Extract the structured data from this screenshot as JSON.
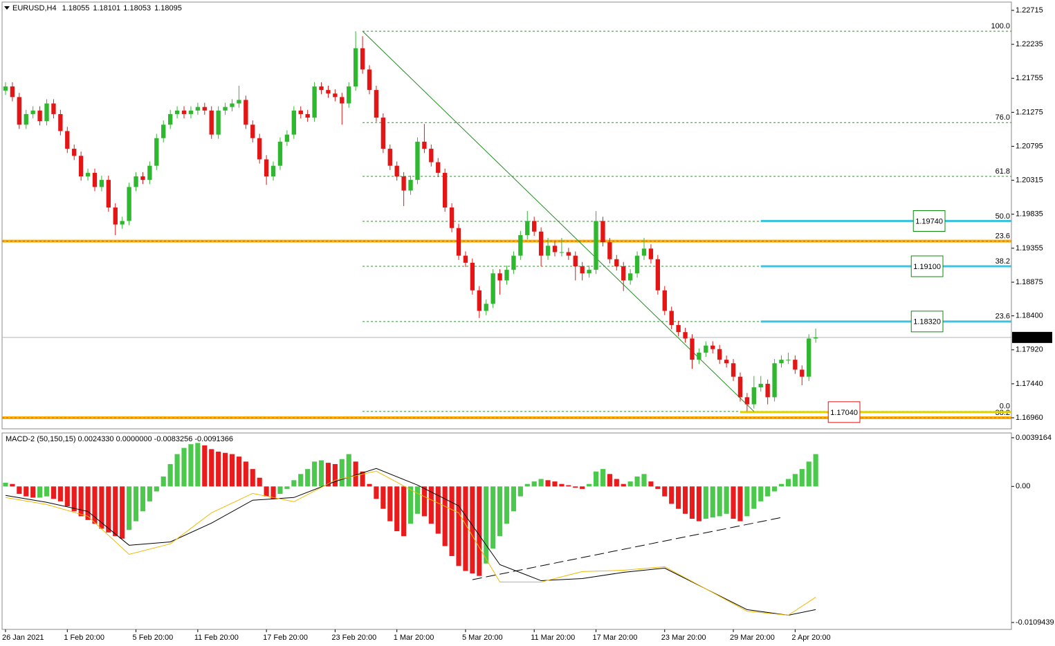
{
  "header": {
    "symbol": "EURUSD,H4",
    "ohlc": [
      1.18055,
      1.18101,
      1.18053,
      1.18095
    ]
  },
  "chart_data": [
    {
      "type": "candlestick",
      "up_color": "#2fb82f",
      "down_color": "#e31515",
      "xlim": [
        -0.5,
        146.5
      ],
      "xticks": [
        {
          "value": 0,
          "label": "26 Jan 2021"
        },
        {
          "value": 9,
          "label": "1 Feb 20:00"
        },
        {
          "value": 19,
          "label": "5 Feb 20:00"
        },
        {
          "value": 28,
          "label": "11 Feb 20:00"
        },
        {
          "value": 38,
          "label": "17 Feb 20:00"
        },
        {
          "value": 48,
          "label": "23 Feb 20:00"
        },
        {
          "value": 57,
          "label": "1 Mar 20:00"
        },
        {
          "value": 67,
          "label": "5 Mar 20:00"
        },
        {
          "value": 77,
          "label": "11 Mar 20:00"
        },
        {
          "value": 86,
          "label": "17 Mar 20:00"
        },
        {
          "value": 96,
          "label": "23 Mar 20:00"
        },
        {
          "value": 106,
          "label": "29 Mar 20:00"
        },
        {
          "value": 115,
          "label": "2 Apr 20:00"
        }
      ],
      "ylim": [
        1.16804,
        1.22832
      ],
      "yticks": [
        1.22715,
        1.22235,
        1.21755,
        1.21275,
        1.20795,
        1.20315,
        1.19835,
        1.19355,
        1.18875,
        {
          "value": 1.184,
          "label": "1.18400"
        },
        {
          "value": 1.1792,
          "label": "1.17920"
        },
        {
          "value": 1.1744,
          "label": "1.17440"
        },
        {
          "value": 1.1696,
          "label": "1.16960"
        }
      ],
      "current_price": 1.18095,
      "candles": [
        [
          1.2158,
          1.217,
          1.2152,
          1.2164
        ],
        [
          1.2164,
          1.217,
          1.2143,
          1.2149
        ],
        [
          1.2149,
          1.2155,
          1.2104,
          1.211
        ],
        [
          1.211,
          1.2131,
          1.2104,
          1.2125
        ],
        [
          1.2125,
          1.2136,
          1.2119,
          1.213
        ],
        [
          1.213,
          1.2136,
          1.2109,
          1.2115
        ],
        [
          1.2115,
          1.2146,
          1.2109,
          1.214
        ],
        [
          1.214,
          1.2146,
          1.2119,
          1.2125
        ],
        [
          1.2125,
          1.2131,
          1.2095,
          1.2101
        ],
        [
          1.2101,
          1.2107,
          1.207,
          1.2076
        ],
        [
          1.2076,
          1.2082,
          1.206,
          1.2066
        ],
        [
          1.2066,
          1.2072,
          1.2031,
          1.2037
        ],
        [
          1.2037,
          1.2048,
          1.2031,
          1.2042
        ],
        [
          1.2042,
          1.2048,
          1.2016,
          1.2022
        ],
        [
          1.2022,
          1.2038,
          1.2016,
          1.2032
        ],
        [
          1.2032,
          1.2038,
          1.1987,
          1.1993
        ],
        [
          1.1993,
          1.1999,
          1.1954,
          1.1969
        ],
        [
          1.1969,
          1.198,
          1.1963,
          1.1974
        ],
        [
          1.1974,
          1.2028,
          1.1968,
          1.2022
        ],
        [
          1.2022,
          1.2043,
          1.2016,
          1.2037
        ],
        [
          1.2037,
          1.2043,
          1.2026,
          1.2032
        ],
        [
          1.2032,
          1.2058,
          1.2026,
          1.2052
        ],
        [
          1.2052,
          1.2097,
          1.2046,
          1.2091
        ],
        [
          1.2091,
          1.2116,
          1.2085,
          1.211
        ],
        [
          1.211,
          1.2131,
          1.2104,
          1.2125
        ],
        [
          1.2125,
          1.2136,
          1.2119,
          1.213
        ],
        [
          1.213,
          1.2136,
          1.2119,
          1.2125
        ],
        [
          1.2125,
          1.2136,
          1.2119,
          1.213
        ],
        [
          1.213,
          1.2141,
          1.2124,
          1.2135
        ],
        [
          1.2135,
          1.2141,
          1.2124,
          1.213
        ],
        [
          1.213,
          1.2136,
          1.209,
          1.2096
        ],
        [
          1.2096,
          1.2136,
          1.209,
          1.213
        ],
        [
          1.213,
          1.2141,
          1.2124,
          1.2135
        ],
        [
          1.2135,
          1.2146,
          1.2129,
          1.214
        ],
        [
          1.214,
          1.2165,
          1.2134,
          1.2145
        ],
        [
          1.2145,
          1.2151,
          1.2104,
          1.211
        ],
        [
          1.211,
          1.2116,
          1.2085,
          1.2091
        ],
        [
          1.2091,
          1.2097,
          1.2055,
          1.2061
        ],
        [
          1.2061,
          1.2067,
          1.2025,
          1.2037
        ],
        [
          1.2037,
          1.2058,
          1.2031,
          1.2052
        ],
        [
          1.2052,
          1.2092,
          1.2046,
          1.2086
        ],
        [
          1.2086,
          1.2102,
          1.208,
          1.2096
        ],
        [
          1.2096,
          1.2136,
          1.209,
          1.213
        ],
        [
          1.213,
          1.2136,
          1.2119,
          1.2125
        ],
        [
          1.2125,
          1.2131,
          1.2114,
          1.212
        ],
        [
          1.212,
          1.217,
          1.2114,
          1.2164
        ],
        [
          1.2164,
          1.217,
          1.2153,
          1.2159
        ],
        [
          1.2159,
          1.2165,
          1.2148,
          1.2154
        ],
        [
          1.2154,
          1.216,
          1.2143,
          1.2149
        ],
        [
          1.2149,
          1.2155,
          1.211,
          1.214
        ],
        [
          1.214,
          1.217,
          1.2134,
          1.2164
        ],
        [
          1.2164,
          1.2242,
          1.2158,
          1.2218
        ],
        [
          1.2218,
          1.2235,
          1.2182,
          1.2188
        ],
        [
          1.2188,
          1.2194,
          1.2153,
          1.2159
        ],
        [
          1.2159,
          1.2165,
          1.2114,
          1.212
        ],
        [
          1.212,
          1.2126,
          1.207,
          1.2076
        ],
        [
          1.2076,
          1.2082,
          1.2046,
          1.2052
        ],
        [
          1.2052,
          1.2058,
          1.2031,
          1.2037
        ],
        [
          1.2037,
          1.2043,
          1.1995,
          1.2017
        ],
        [
          1.2017,
          1.2038,
          1.2011,
          1.2032
        ],
        [
          1.2032,
          1.2092,
          1.2026,
          1.2086
        ],
        [
          1.2086,
          1.2111,
          1.207,
          1.2076
        ],
        [
          1.2076,
          1.2082,
          1.2051,
          1.2057
        ],
        [
          1.2057,
          1.2063,
          1.2036,
          1.2042
        ],
        [
          1.2042,
          1.2048,
          1.1987,
          1.1993
        ],
        [
          1.1993,
          1.1999,
          1.1958,
          1.1964
        ],
        [
          1.1964,
          1.197,
          1.1919,
          1.1925
        ],
        [
          1.1925,
          1.1931,
          1.1909,
          1.1915
        ],
        [
          1.1915,
          1.1921,
          1.187,
          1.1876
        ],
        [
          1.1876,
          1.1882,
          1.1837,
          1.1847
        ],
        [
          1.1847,
          1.1863,
          1.1841,
          1.1857
        ],
        [
          1.1857,
          1.1906,
          1.1851,
          1.19
        ],
        [
          1.19,
          1.1906,
          1.187,
          1.189
        ],
        [
          1.189,
          1.1911,
          1.1884,
          1.1905
        ],
        [
          1.1905,
          1.1931,
          1.1899,
          1.1925
        ],
        [
          1.1925,
          1.196,
          1.1919,
          1.1954
        ],
        [
          1.1954,
          1.1988,
          1.1948,
          1.1974
        ],
        [
          1.1974,
          1.198,
          1.1953,
          1.1959
        ],
        [
          1.1959,
          1.1965,
          1.191,
          1.1925
        ],
        [
          1.1925,
          1.195,
          1.1919,
          1.1939
        ],
        [
          1.1939,
          1.1945,
          1.1924,
          1.193
        ],
        [
          1.193,
          1.195,
          1.1924,
          1.193
        ],
        [
          1.193,
          1.1936,
          1.1919,
          1.1925
        ],
        [
          1.1925,
          1.1931,
          1.189,
          1.191
        ],
        [
          1.191,
          1.1916,
          1.189,
          1.19
        ],
        [
          1.19,
          1.1911,
          1.1894,
          1.1905
        ],
        [
          1.1905,
          1.1988,
          1.1899,
          1.1974
        ],
        [
          1.1974,
          1.198,
          1.1938,
          1.1944
        ],
        [
          1.1944,
          1.195,
          1.1914,
          1.192
        ],
        [
          1.192,
          1.1926,
          1.1904,
          1.191
        ],
        [
          1.191,
          1.1916,
          1.1875,
          1.189
        ],
        [
          1.189,
          1.1906,
          1.1884,
          1.19
        ],
        [
          1.19,
          1.1931,
          1.1894,
          1.1925
        ],
        [
          1.1925,
          1.195,
          1.1919,
          1.1935
        ],
        [
          1.1935,
          1.1941,
          1.1914,
          1.192
        ],
        [
          1.192,
          1.1926,
          1.187,
          1.1876
        ],
        [
          1.1876,
          1.1882,
          1.1841,
          1.1847
        ],
        [
          1.1847,
          1.1853,
          1.1821,
          1.1827
        ],
        [
          1.1827,
          1.1833,
          1.1811,
          1.1817
        ],
        [
          1.1817,
          1.1823,
          1.1802,
          1.1808
        ],
        [
          1.1808,
          1.1814,
          1.1765,
          1.1778
        ],
        [
          1.1778,
          1.1794,
          1.1772,
          1.1788
        ],
        [
          1.1788,
          1.1804,
          1.1782,
          1.1798
        ],
        [
          1.1798,
          1.1804,
          1.1787,
          1.1793
        ],
        [
          1.1793,
          1.1799,
          1.1772,
          1.1778
        ],
        [
          1.1778,
          1.1784,
          1.1767,
          1.1773
        ],
        [
          1.1773,
          1.1779,
          1.1748,
          1.1754
        ],
        [
          1.1754,
          1.176,
          1.1719,
          1.1725
        ],
        [
          1.1725,
          1.1731,
          1.1705,
          1.1715
        ],
        [
          1.1715,
          1.1755,
          1.1709,
          1.1739
        ],
        [
          1.1739,
          1.1755,
          1.1733,
          1.1744
        ],
        [
          1.1744,
          1.175,
          1.1715,
          1.1725
        ],
        [
          1.1725,
          1.1779,
          1.1719,
          1.1773
        ],
        [
          1.1773,
          1.1784,
          1.1767,
          1.1778
        ],
        [
          1.1778,
          1.1788,
          1.1772,
          1.1778
        ],
        [
          1.1778,
          1.1784,
          1.1758,
          1.1764
        ],
        [
          1.1764,
          1.177,
          1.1742,
          1.1754
        ],
        [
          1.1754,
          1.1814,
          1.1748,
          1.1808
        ],
        [
          1.1808,
          1.1822,
          1.1802,
          1.18095
        ]
      ],
      "fibonacci": {
        "start": 52,
        "color": "#2e8b2e",
        "levels": [
          {
            "value": 1.2242,
            "label": "100.0"
          },
          {
            "value": 1.2113,
            "label": "76.0"
          },
          {
            "value": 1.2037,
            "label": "61.8"
          },
          {
            "value": 1.19735,
            "label": "50.0"
          },
          {
            "value": 1.191,
            "label": "38.2"
          },
          {
            "value": 1.1832,
            "label": "23.6"
          },
          {
            "value": 1.1705,
            "label": "0.0"
          }
        ]
      },
      "fibonacci_2": {
        "color": "#ffae00",
        "label_color": "#e01010",
        "levels": [
          {
            "value": 1.19455,
            "label": "23.6"
          },
          {
            "value": 1.1696,
            "label": "38.2"
          }
        ]
      },
      "trend_line": {
        "x": [
          52,
          109
        ],
        "y": [
          1.2242,
          1.1705
        ],
        "color": "#1e8c1e"
      },
      "targets": [
        {
          "value": 1.1974,
          "label": "1.19740",
          "color": "#0a8a0a",
          "line_color": "#3cc3e0",
          "start": 110
        },
        {
          "value": 1.191,
          "label": "1.19100",
          "color": "#0a8a0a",
          "line_color": "#3cc3e0",
          "start": 110
        },
        {
          "value": 1.1832,
          "label": "1.18320",
          "color": "#0a8a0a",
          "line_color": "#3cc3e0",
          "start": 110
        },
        {
          "value": 1.1704,
          "label": "1.17040",
          "color": "#e01010",
          "line_color": "#e0d200",
          "start": 107
        }
      ]
    },
    {
      "type": "macd",
      "title": "MACD-2 (50,150,15) 0.0024330 0.0000000 -0.0083256 -0.0091366",
      "up_color": "#4cc94c",
      "down_color": "#e81c1c",
      "ylim": [
        -0.0115,
        0.0043
      ],
      "yticks": [
        0.0039164,
        {
          "value": 0,
          "label": "0.00"
        },
        -0.0109439
      ],
      "histogram": [
        0.0003,
        0.0002,
        -0.0006,
        -0.0008,
        -0.0009,
        -0.0009,
        -0.0008,
        -0.001,
        -0.0012,
        -0.0016,
        -0.002,
        -0.0024,
        -0.0027,
        -0.003,
        -0.0034,
        -0.0037,
        -0.004,
        -0.0042,
        -0.0035,
        -0.0028,
        -0.002,
        -0.0012,
        -0.0004,
        0.0008,
        0.0018,
        0.0026,
        0.0031,
        0.0034,
        0.0035,
        0.0033,
        0.003,
        0.0028,
        0.0027,
        0.0026,
        0.0024,
        0.002,
        0.0014,
        0.0007,
        -0.0008,
        -0.001,
        -0.0006,
        -0.0002,
        0.0005,
        0.001,
        0.0014,
        0.002,
        0.0021,
        0.0019,
        0.0018,
        0.0022,
        0.0026,
        0.002,
        0.0012,
        0.0002,
        -0.001,
        -0.0018,
        -0.0028,
        -0.0036,
        -0.004,
        -0.003,
        -0.0022,
        -0.0024,
        -0.003,
        -0.0038,
        -0.0048,
        -0.0056,
        -0.0064,
        -0.0068,
        -0.007,
        -0.0072,
        -0.0062,
        -0.005,
        -0.004,
        -0.003,
        -0.002,
        -0.0008,
        0.0002,
        0.0004,
        0.0006,
        0.0005,
        0.0004,
        0.0002,
        0.0001,
        -0.0001,
        -0.0002,
        0.0002,
        0.0012,
        0.0014,
        0.001,
        0.0006,
        0.0002,
        0.0004,
        0.0008,
        0.001,
        0.0004,
        -0.0002,
        -0.0008,
        -0.0014,
        -0.0018,
        -0.0022,
        -0.0026,
        -0.0028,
        -0.0026,
        -0.0025,
        -0.0024,
        -0.0022,
        -0.0026,
        -0.0028,
        -0.0024,
        -0.0018,
        -0.0012,
        -0.0008,
        -0.0004,
        0.0002,
        0.0006,
        0.001,
        0.0014,
        0.002,
        0.0026
      ],
      "series": [
        {
          "color": "#000000",
          "x": [
            0,
            6,
            12,
            18,
            24,
            30,
            36,
            42,
            48,
            54,
            60,
            66,
            72,
            78,
            84,
            90,
            96,
            102,
            108,
            114,
            118
          ],
          "values": [
            -0.00072,
            -0.00128,
            -0.00201,
            -0.00473,
            -0.00446,
            -0.00295,
            -0.00111,
            -0.00089,
            0.00039,
            0.00145,
            0.00011,
            -0.00156,
            -0.00629,
            -0.00758,
            -0.00741,
            -0.00691,
            -0.00657,
            -0.00824,
            -0.00991,
            -0.01036,
            -0.00991
          ]
        },
        {
          "color": "#f2b800",
          "x": [
            0,
            6,
            12,
            18,
            24,
            30,
            36,
            42,
            48,
            54,
            60,
            66,
            72,
            78,
            84,
            90,
            96,
            102,
            108,
            114,
            118
          ],
          "values": [
            -0.00089,
            -0.00145,
            -0.0024,
            -0.00546,
            -0.00462,
            -0.00212,
            -0.00056,
            -0.00123,
            0.0005,
            0.00123,
            -0.00056,
            -0.00212,
            -0.00769,
            -0.00769,
            -0.00685,
            -0.00674,
            -0.00646,
            -0.00824,
            -0.01003,
            -0.01036,
            -0.00891
          ]
        }
      ],
      "trend_line": {
        "x": [
          68,
          113
        ],
        "y": [
          -0.0075,
          -0.0025
        ],
        "color": "#000000"
      }
    }
  ]
}
